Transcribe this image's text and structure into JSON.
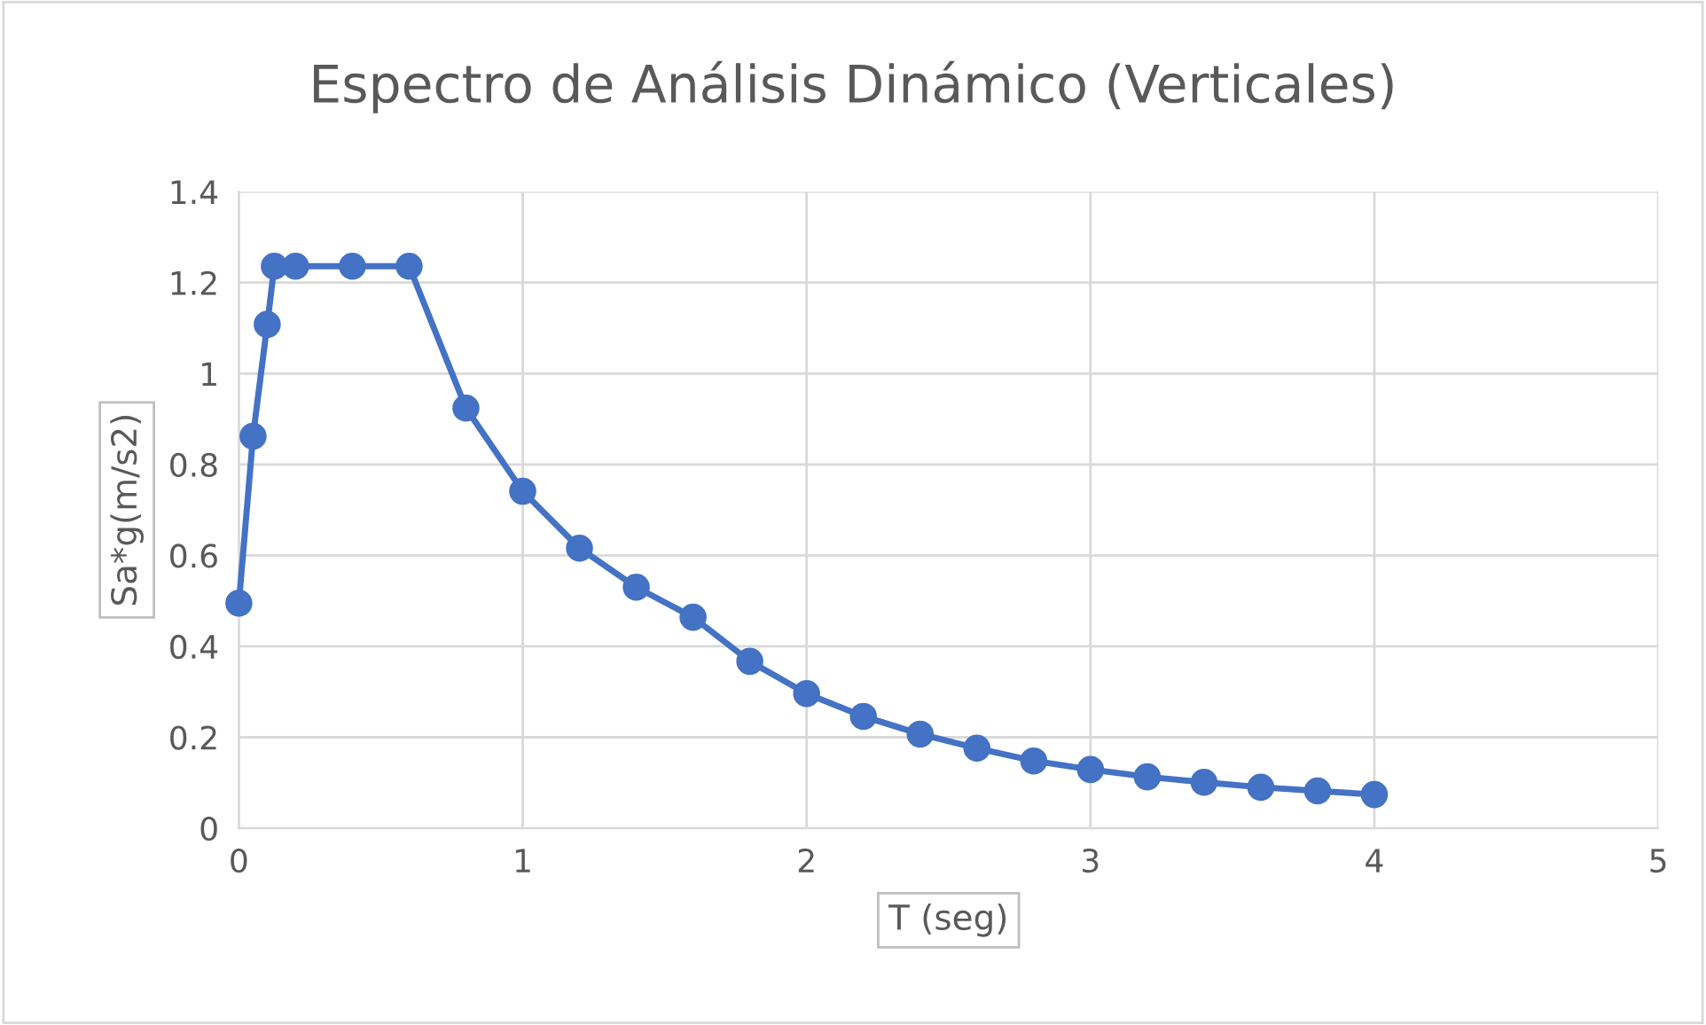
{
  "chart_data": {
    "type": "line",
    "title": "Espectro de Análisis Dinámico (Verticales)",
    "xlabel": "T (seg)",
    "ylabel": "Sa*g(m/s2)",
    "x": [
      0,
      0.05,
      0.1,
      0.125,
      0.2,
      0.4,
      0.6,
      0.8,
      1.0,
      1.2,
      1.4,
      1.6,
      1.8,
      2.0,
      2.2,
      2.4,
      2.6,
      2.8,
      3.0,
      3.2,
      3.4,
      3.6,
      3.8,
      4.0
    ],
    "series": [
      {
        "color": "#4472c4",
        "values": [
          0.495,
          0.862,
          1.108,
          1.236,
          1.236,
          1.236,
          1.236,
          0.924,
          0.741,
          0.616,
          0.53,
          0.464,
          0.367,
          0.296,
          0.246,
          0.207,
          0.176,
          0.148,
          0.129,
          0.113,
          0.101,
          0.09,
          0.082,
          0.074
        ]
      }
    ],
    "line_style": "solid",
    "marker": "circle",
    "xlim": [
      0,
      5
    ],
    "xticks": [
      0,
      1,
      2,
      3,
      4,
      5
    ],
    "ylim": [
      0,
      1.4
    ],
    "yticks": [
      0,
      0.2,
      0.4,
      0.6,
      0.8,
      1,
      1.2,
      1.4
    ],
    "grid": true
  }
}
